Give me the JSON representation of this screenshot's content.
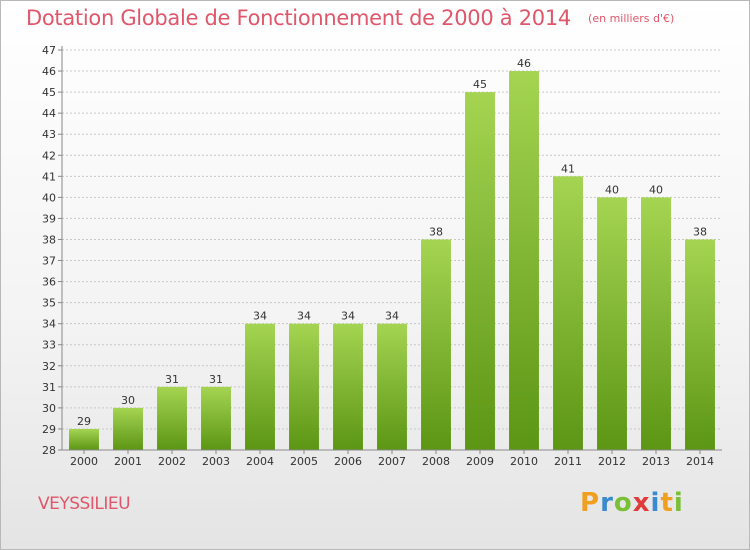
{
  "header": {
    "title": "Dotation Globale de Fonctionnement de 2000 à 2014",
    "subtitle": "(en milliers d'€)"
  },
  "footer": {
    "place": "VEYSSILIEU",
    "logo_letters": [
      "P",
      "r",
      "o",
      "x",
      "i",
      "t",
      "i"
    ],
    "logo_colors": [
      "#f0a020",
      "#3a8ad0",
      "#7ac036",
      "#e03a3a",
      "#3a8ad0",
      "#f0a020",
      "#7ac036"
    ]
  },
  "chart_data": {
    "type": "bar",
    "title": "Dotation Globale de Fonctionnement de 2000 à 2014",
    "subtitle": "(en milliers d'€)",
    "categories": [
      "2000",
      "2001",
      "2002",
      "2003",
      "2004",
      "2005",
      "2006",
      "2007",
      "2008",
      "2009",
      "2010",
      "2011",
      "2012",
      "2013",
      "2014"
    ],
    "values": [
      29,
      30,
      31,
      31,
      34,
      34,
      34,
      34,
      38,
      45,
      46,
      41,
      40,
      40,
      38
    ],
    "ylim": [
      28,
      47
    ],
    "yticks": [
      28,
      29,
      30,
      31,
      32,
      33,
      34,
      35,
      36,
      37,
      38,
      39,
      40,
      41,
      42,
      43,
      44,
      45,
      46,
      47
    ],
    "grid": true,
    "colors": {
      "bar_light": "#9ccc4a",
      "bar_dark": "#5f9a16",
      "grid": "#c8c8c8",
      "text": "#333333"
    }
  }
}
